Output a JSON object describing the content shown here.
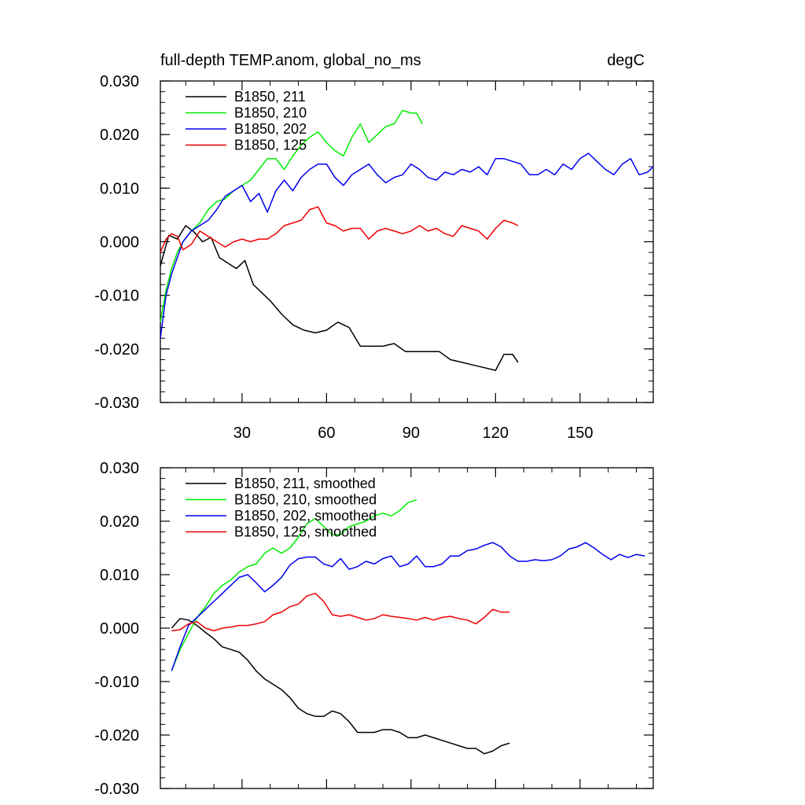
{
  "chart_data": [
    {
      "type": "line",
      "title": "full-depth TEMP.anom, global_no_ms",
      "units": "degC",
      "xlim": [
        1,
        176
      ],
      "ylim": [
        -0.03,
        0.03
      ],
      "xticks": [
        30,
        60,
        90,
        120,
        150
      ],
      "xtick_labels": [
        "30",
        "60",
        "90",
        "120",
        "150"
      ],
      "yticks": [
        0.03,
        0.02,
        0.01,
        0.0,
        -0.01,
        -0.02,
        -0.03
      ],
      "ytick_labels": [
        "0.030",
        "0.020",
        "0.010",
        "0.000",
        "-0.010",
        "-0.020",
        "-0.030"
      ],
      "legend_position": "top-left",
      "series": [
        {
          "name": "B1850, 211",
          "color": "#000000",
          "x": [
            1,
            4,
            7,
            10,
            13,
            16,
            19,
            22,
            25,
            28,
            31,
            34,
            37,
            40,
            44,
            48,
            52,
            56,
            60,
            64,
            68,
            72,
            76,
            80,
            84,
            88,
            92,
            96,
            100,
            104,
            108,
            112,
            116,
            120,
            123,
            126,
            128
          ],
          "values": [
            -0.0045,
            0.0012,
            0.0005,
            0.003,
            0.0018,
            0.0,
            0.0008,
            -0.003,
            -0.004,
            -0.005,
            -0.0035,
            -0.008,
            -0.0095,
            -0.011,
            -0.0135,
            -0.0155,
            -0.0165,
            -0.017,
            -0.0165,
            -0.015,
            -0.016,
            -0.0195,
            -0.0195,
            -0.0195,
            -0.019,
            -0.0205,
            -0.0205,
            -0.0205,
            -0.0205,
            -0.022,
            -0.0225,
            -0.023,
            -0.0235,
            -0.024,
            -0.021,
            -0.021,
            -0.0225
          ]
        },
        {
          "name": "B1850, 210",
          "color": "#00ee00",
          "x": [
            1,
            3,
            5,
            7,
            9,
            12,
            15,
            18,
            21,
            24,
            27,
            30,
            33,
            36,
            39,
            42,
            45,
            48,
            51,
            54,
            57,
            60,
            63,
            66,
            69,
            72,
            75,
            78,
            81,
            84,
            87,
            90,
            92,
            94
          ],
          "values": [
            -0.015,
            -0.009,
            -0.005,
            -0.002,
            0.0,
            0.002,
            0.0035,
            0.006,
            0.0075,
            0.008,
            0.0095,
            0.0105,
            0.0115,
            0.0135,
            0.0155,
            0.0155,
            0.0135,
            0.016,
            0.018,
            0.0195,
            0.0205,
            0.0185,
            0.017,
            0.016,
            0.0195,
            0.022,
            0.0185,
            0.02,
            0.0215,
            0.022,
            0.0245,
            0.024,
            0.024,
            0.022
          ]
        },
        {
          "name": "B1850, 202",
          "color": "#0000ee",
          "x": [
            1,
            3,
            5,
            7,
            9,
            12,
            15,
            18,
            21,
            24,
            27,
            30,
            33,
            36,
            39,
            42,
            45,
            48,
            51,
            54,
            57,
            60,
            63,
            66,
            69,
            72,
            75,
            78,
            81,
            84,
            87,
            90,
            93,
            96,
            99,
            102,
            105,
            108,
            111,
            114,
            117,
            120,
            123,
            126,
            129,
            132,
            135,
            138,
            141,
            144,
            147,
            150,
            153,
            156,
            159,
            162,
            165,
            168,
            171,
            174,
            176
          ],
          "values": [
            -0.018,
            -0.01,
            -0.006,
            -0.003,
            0.0,
            0.002,
            0.003,
            0.004,
            0.006,
            0.0085,
            0.0095,
            0.0105,
            0.0075,
            0.009,
            0.0055,
            0.0095,
            0.0115,
            0.0095,
            0.012,
            0.0135,
            0.0145,
            0.0145,
            0.012,
            0.0105,
            0.0125,
            0.0135,
            0.0145,
            0.0125,
            0.011,
            0.012,
            0.0125,
            0.0145,
            0.0135,
            0.012,
            0.0115,
            0.013,
            0.0125,
            0.0135,
            0.013,
            0.014,
            0.0125,
            0.0155,
            0.0155,
            0.015,
            0.0145,
            0.0125,
            0.0125,
            0.0135,
            0.0125,
            0.0145,
            0.0135,
            0.0155,
            0.0165,
            0.015,
            0.0135,
            0.0125,
            0.0145,
            0.0155,
            0.0125,
            0.013,
            0.014
          ]
        },
        {
          "name": "B1850, 125",
          "color": "#ee0000",
          "x": [
            1,
            3,
            5,
            7,
            9,
            12,
            15,
            18,
            21,
            24,
            27,
            30,
            33,
            36,
            39,
            42,
            45,
            48,
            51,
            54,
            57,
            60,
            63,
            66,
            69,
            72,
            75,
            78,
            81,
            84,
            87,
            90,
            93,
            96,
            99,
            102,
            105,
            108,
            111,
            114,
            117,
            120,
            123,
            126,
            128
          ],
          "values": [
            -0.002,
            0.0005,
            0.0015,
            0.001,
            -0.0015,
            -0.0005,
            0.002,
            0.001,
            0.0,
            -0.001,
            0.0,
            0.0005,
            0.0,
            0.0005,
            0.0005,
            0.0015,
            0.003,
            0.0035,
            0.004,
            0.006,
            0.0065,
            0.0035,
            0.003,
            0.002,
            0.0025,
            0.0025,
            0.0005,
            0.002,
            0.0025,
            0.002,
            0.0015,
            0.002,
            0.003,
            0.002,
            0.0025,
            0.0015,
            0.001,
            0.003,
            0.0025,
            0.002,
            0.0005,
            0.0025,
            0.004,
            0.0035,
            0.003
          ]
        }
      ]
    },
    {
      "type": "line",
      "title": "",
      "xlim": [
        1,
        176
      ],
      "ylim": [
        -0.03,
        0.03
      ],
      "xticks": [
        30,
        60,
        90,
        120,
        150
      ],
      "yticks": [
        0.03,
        0.02,
        0.01,
        0.0,
        -0.01,
        -0.02,
        -0.03
      ],
      "ytick_labels": [
        "0.030",
        "0.020",
        "0.010",
        "0.000",
        "-0.010",
        "-0.020",
        "-0.030"
      ],
      "legend_position": "top-left",
      "series": [
        {
          "name": "B1850, 211, smoothed",
          "color": "#000000",
          "x": [
            5,
            8,
            11,
            14,
            17,
            20,
            23,
            26,
            29,
            32,
            35,
            38,
            41,
            44,
            47,
            50,
            53,
            56,
            59,
            62,
            65,
            68,
            71,
            74,
            77,
            80,
            83,
            86,
            89,
            92,
            95,
            98,
            101,
            104,
            107,
            110,
            113,
            116,
            119,
            122,
            125
          ],
          "values": [
            0.0,
            0.0018,
            0.0015,
            0.0005,
            -0.0008,
            -0.002,
            -0.0035,
            -0.004,
            -0.0045,
            -0.006,
            -0.008,
            -0.0095,
            -0.0105,
            -0.0115,
            -0.013,
            -0.015,
            -0.016,
            -0.0165,
            -0.0165,
            -0.0155,
            -0.016,
            -0.0175,
            -0.0195,
            -0.0195,
            -0.0195,
            -0.019,
            -0.019,
            -0.0195,
            -0.0205,
            -0.0205,
            -0.02,
            -0.0205,
            -0.021,
            -0.0215,
            -0.022,
            -0.0225,
            -0.0225,
            -0.0235,
            -0.023,
            -0.022,
            -0.0215
          ]
        },
        {
          "name": "B1850, 210, smoothed",
          "color": "#00ee00",
          "x": [
            5,
            8,
            11,
            14,
            17,
            20,
            23,
            26,
            29,
            32,
            35,
            38,
            41,
            44,
            47,
            50,
            53,
            56,
            59,
            62,
            65,
            68,
            71,
            74,
            77,
            80,
            83,
            86,
            89,
            92
          ],
          "values": [
            -0.008,
            -0.004,
            -0.001,
            0.002,
            0.004,
            0.0065,
            0.008,
            0.009,
            0.0105,
            0.0115,
            0.012,
            0.014,
            0.015,
            0.014,
            0.015,
            0.017,
            0.0195,
            0.0205,
            0.019,
            0.0175,
            0.0175,
            0.019,
            0.0195,
            0.02,
            0.021,
            0.0215,
            0.021,
            0.022,
            0.0235,
            0.024
          ]
        },
        {
          "name": "B1850, 202, smoothed",
          "color": "#0000ee",
          "x": [
            5,
            8,
            11,
            14,
            17,
            20,
            23,
            26,
            29,
            32,
            35,
            38,
            41,
            44,
            47,
            50,
            53,
            56,
            59,
            62,
            65,
            68,
            71,
            74,
            77,
            80,
            83,
            86,
            89,
            92,
            95,
            98,
            101,
            104,
            107,
            110,
            113,
            116,
            119,
            122,
            125,
            128,
            131,
            134,
            137,
            140,
            143,
            146,
            149,
            152,
            155,
            158,
            161,
            164,
            167,
            170,
            173
          ],
          "values": [
            -0.008,
            -0.0035,
            0.0005,
            0.002,
            0.0035,
            0.005,
            0.0065,
            0.008,
            0.0095,
            0.01,
            0.0085,
            0.0068,
            0.008,
            0.0095,
            0.0118,
            0.013,
            0.0133,
            0.0133,
            0.012,
            0.0115,
            0.013,
            0.011,
            0.0115,
            0.0125,
            0.012,
            0.013,
            0.0135,
            0.0115,
            0.012,
            0.0135,
            0.0115,
            0.0115,
            0.012,
            0.0135,
            0.0135,
            0.0145,
            0.0148,
            0.0155,
            0.016,
            0.0152,
            0.0135,
            0.0125,
            0.0125,
            0.0128,
            0.0126,
            0.0128,
            0.0135,
            0.0148,
            0.0152,
            0.016,
            0.015,
            0.0138,
            0.0128,
            0.0138,
            0.0132,
            0.0138,
            0.0135
          ]
        },
        {
          "name": "B1850, 125, smoothed",
          "color": "#ee0000",
          "x": [
            5,
            8,
            11,
            14,
            17,
            20,
            23,
            26,
            29,
            32,
            35,
            38,
            41,
            44,
            47,
            50,
            53,
            56,
            59,
            62,
            65,
            68,
            71,
            74,
            77,
            80,
            83,
            86,
            89,
            92,
            95,
            98,
            101,
            104,
            107,
            110,
            113,
            116,
            119,
            122,
            125
          ],
          "values": [
            -0.0005,
            -0.0003,
            0.0008,
            0.0012,
            0.0,
            -0.0005,
            0.0,
            0.0002,
            0.0005,
            0.0005,
            0.0008,
            0.0012,
            0.0025,
            0.003,
            0.004,
            0.0045,
            0.006,
            0.0065,
            0.005,
            0.0025,
            0.0022,
            0.0025,
            0.002,
            0.0015,
            0.0018,
            0.0025,
            0.0022,
            0.002,
            0.0018,
            0.0015,
            0.002,
            0.0015,
            0.002,
            0.0022,
            0.0018,
            0.0015,
            0.0008,
            0.002,
            0.0035,
            0.003,
            0.003
          ]
        }
      ]
    }
  ]
}
